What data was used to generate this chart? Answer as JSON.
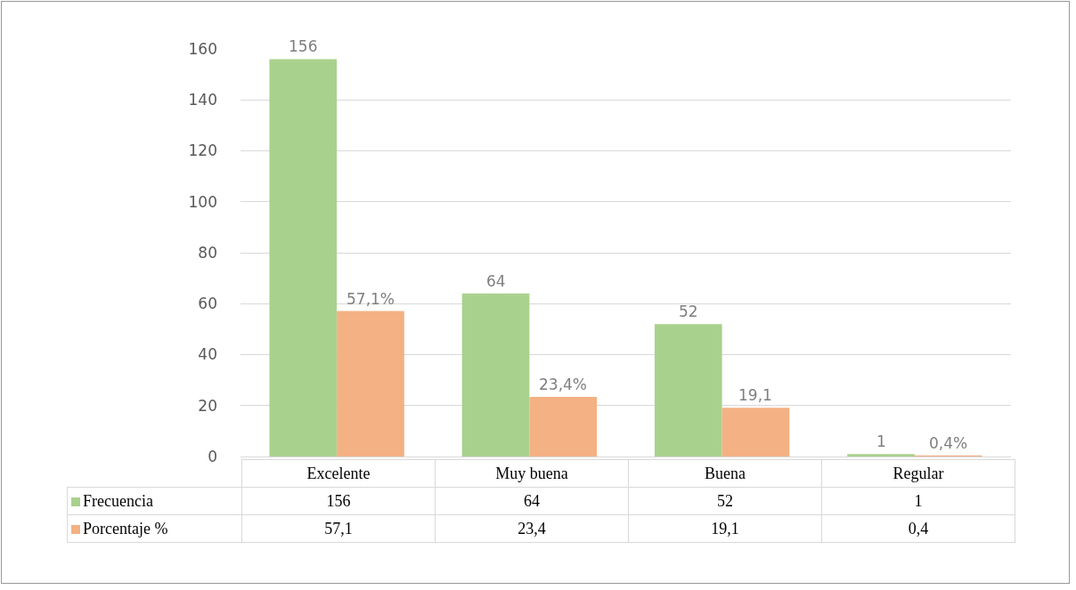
{
  "chart_data": {
    "type": "bar",
    "categories": [
      "Excelente",
      "Muy buena",
      "Buena",
      "Regular"
    ],
    "series": [
      {
        "name": "Frecuencia",
        "color": "#a9d18e",
        "values": [
          156,
          64,
          52,
          1
        ],
        "value_labels": [
          "156",
          "64",
          "52",
          "1"
        ]
      },
      {
        "name": "Porcentaje %",
        "color": "#f4b183",
        "values": [
          57.1,
          23.4,
          19.1,
          0.4
        ],
        "value_labels": [
          "57,1",
          "23,4",
          "19,1",
          "0,4"
        ]
      }
    ],
    "annotations": [
      {
        "text": "156",
        "x": "Excelente",
        "y": 156
      },
      {
        "text": "57,1%",
        "x": "Excelente",
        "y": 57.1
      },
      {
        "text": "64",
        "x": "Muy buena",
        "y": 64
      },
      {
        "text": "23,4%",
        "x": "Muy buena",
        "y": 23.4
      },
      {
        "text": "52",
        "x": "Buena",
        "y": 52
      },
      {
        "text": "19,1",
        "x": "Buena",
        "y": 19.1
      },
      {
        "text": "1",
        "x": "Regular",
        "y": 1
      },
      {
        "text": "0,4%",
        "x": "Regular",
        "y": 0.4
      }
    ],
    "ylim": [
      0,
      160
    ],
    "yticks": [
      0,
      20,
      40,
      60,
      80,
      100,
      120,
      140,
      160
    ],
    "grid": "y",
    "legend": "bottom"
  }
}
